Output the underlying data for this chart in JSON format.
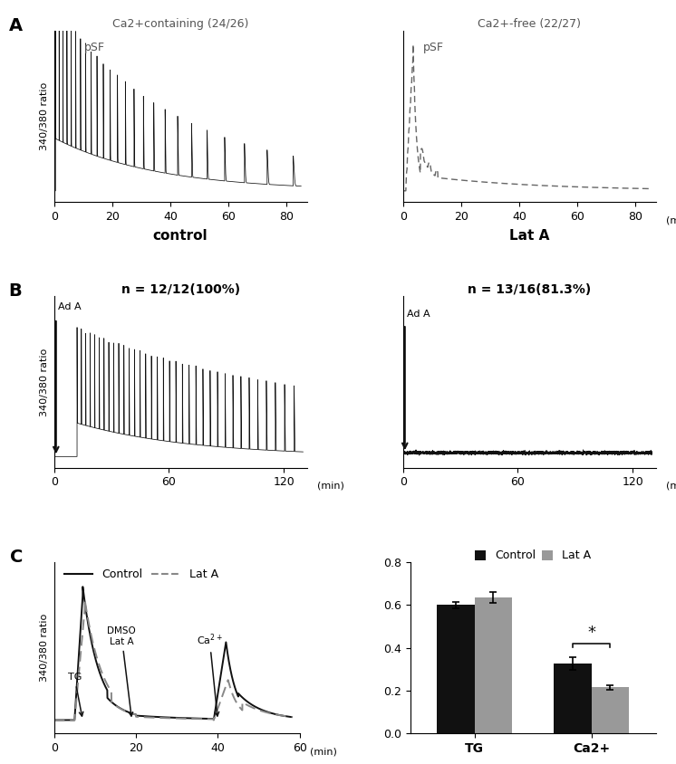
{
  "panel_A_left_title": "Ca2+containing (24/26)",
  "panel_A_right_title": "Ca2+-free (22/27)",
  "panel_A_left_sublabel": "pSF",
  "panel_A_right_sublabel": "pSF",
  "panel_B_left_label": "control",
  "panel_B_left_n": "n = 12/12(100%)",
  "panel_B_right_n": "n = 13/16(81.3%)",
  "bar_control_tg": 0.6,
  "bar_lata_tg": 0.635,
  "bar_control_ca": 0.325,
  "bar_lata_ca": 0.215,
  "bar_control_tg_err": 0.015,
  "bar_lata_tg_err": 0.025,
  "bar_control_ca_err": 0.03,
  "bar_lata_ca_err": 0.012,
  "bar_ylim": [
    0,
    0.8
  ],
  "bar_yticks": [
    0.0,
    0.2,
    0.4,
    0.6,
    0.8
  ],
  "color_black": "#111111",
  "color_gray": "#888888",
  "bg_color": "#ffffff"
}
